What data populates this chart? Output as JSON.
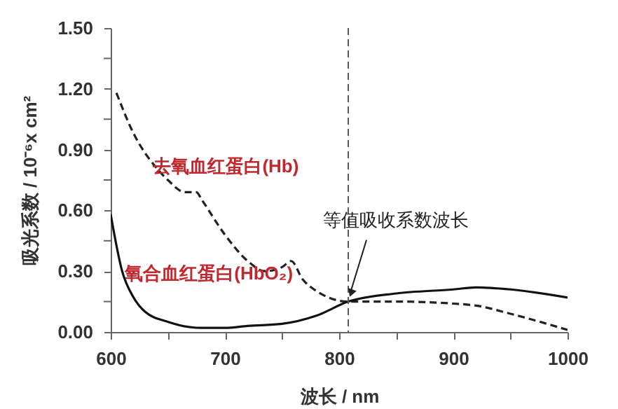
{
  "chart_data": {
    "type": "line",
    "xlabel": "波长 / nm",
    "ylabel": "吸光系数 / 10⁻⁶x cm²",
    "xlim": [
      600,
      1000
    ],
    "ylim": [
      0,
      1.5
    ],
    "xticks": [
      600,
      {
        "value": 650,
        "label": null
      },
      700,
      {
        "value": 750,
        "label": null
      },
      800,
      {
        "value": 850,
        "label": null
      },
      900,
      {
        "value": 950,
        "label": null
      },
      1000
    ],
    "yticks": [
      {
        "value": 0,
        "label": "0.00"
      },
      {
        "value": 0.15,
        "label": null
      },
      {
        "value": 0.3,
        "label": "0.30"
      },
      {
        "value": 0.45,
        "label": null
      },
      {
        "value": 0.6,
        "label": "0.60"
      },
      {
        "value": 0.75,
        "label": null
      },
      {
        "value": 0.9,
        "label": "0.90"
      },
      {
        "value": 1.05,
        "label": null
      },
      {
        "value": 1.2,
        "label": "1.20"
      },
      {
        "value": 1.35,
        "label": null
      },
      {
        "value": 1.5,
        "label": "1.50"
      }
    ],
    "grid": false,
    "legend": false,
    "series": [
      {
        "name": "去氧血红蛋白(Hb)",
        "color": "#222222",
        "line_style": "dashed",
        "x": [
          605,
          620,
          640,
          650,
          665,
          675,
          680,
          700,
          720,
          735,
          750,
          758,
          768,
          778,
          808,
          850,
          900,
          920,
          950,
          1000
        ],
        "values": [
          1.18,
          0.98,
          0.81,
          0.75,
          0.69,
          0.69,
          0.65,
          0.48,
          0.35,
          0.3,
          0.32,
          0.35,
          0.26,
          0.21,
          0.15,
          0.15,
          0.14,
          0.13,
          0.09,
          0.01
        ]
      },
      {
        "name": "氧合血红蛋白(HbO₂)",
        "color": "#111111",
        "line_style": "solid",
        "x": [
          600,
          610,
          620,
          630,
          650,
          680,
          700,
          720,
          750,
          780,
          808,
          850,
          900,
          920,
          950,
          1000
        ],
        "values": [
          0.58,
          0.3,
          0.17,
          0.1,
          0.05,
          0.02,
          0.02,
          0.03,
          0.04,
          0.08,
          0.15,
          0.19,
          0.21,
          0.22,
          0.21,
          0.17
        ]
      }
    ],
    "ref_lines": [
      {
        "axis": "x",
        "value": 808,
        "color": "#555555",
        "line_style": "dashed"
      }
    ],
    "annotations": [
      {
        "text": "等值吸收系数波长",
        "x": 808,
        "y": 0.15
      }
    ]
  }
}
